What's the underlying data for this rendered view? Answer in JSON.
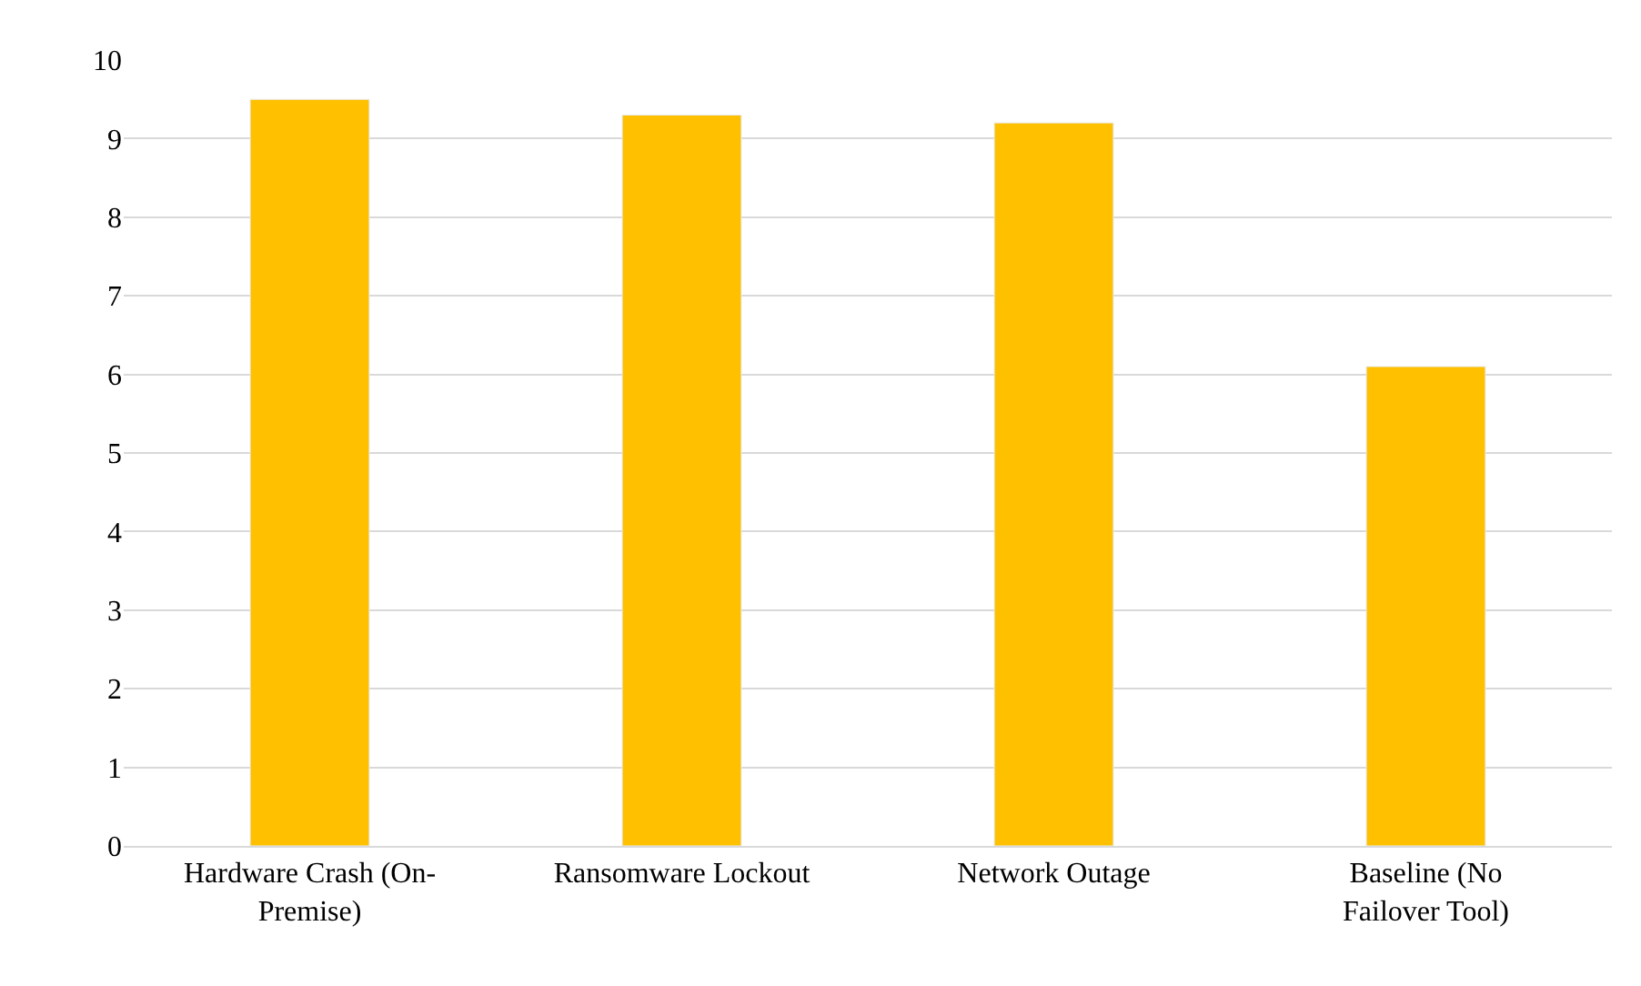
{
  "chart_data": {
    "type": "bar",
    "categories": [
      "Hardware Crash (On-Premise)",
      "Ransomware Lockout",
      "Network Outage",
      "Baseline (No Failover Tool)"
    ],
    "values": [
      9.5,
      9.3,
      9.2,
      6.1
    ],
    "color": "#ffc000",
    "ylim": [
      0,
      10
    ],
    "yticks": [
      0,
      1,
      2,
      3,
      4,
      5,
      6,
      7,
      8,
      9,
      10
    ],
    "grid": "y",
    "legend": false
  }
}
